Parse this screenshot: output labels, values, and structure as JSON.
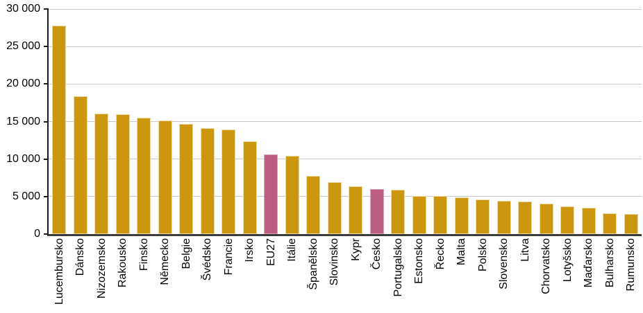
{
  "chart_data": {
    "type": "bar",
    "title": "",
    "xlabel": "",
    "ylabel": "",
    "legend": "none",
    "grid": true,
    "ylim": [
      0,
      30000
    ],
    "categories": [
      "Lucembursko",
      "Dánsko",
      "Nizozemsko",
      "Rakousko",
      "Finsko",
      "Německo",
      "Belgie",
      "Švédsko",
      "Francie",
      "Irsko",
      "EU27",
      "Itálie",
      "Španělsko",
      "Slovinsko",
      "Kypr",
      "Česko",
      "Portugalsko",
      "Estonsko",
      "Řecko",
      "Malta",
      "Polsko",
      "Slovensko",
      "Litva",
      "Chorvatsko",
      "Lotyšsko",
      "Maďarsko",
      "Bulharsko",
      "Rumunsko"
    ],
    "values": [
      27800,
      18400,
      16100,
      16000,
      15500,
      15100,
      14700,
      14100,
      13900,
      12400,
      10600,
      10400,
      7800,
      6900,
      6400,
      6000,
      5900,
      5100,
      5100,
      4900,
      4600,
      4400,
      4300,
      4100,
      3700,
      3500,
      2800,
      2700
    ],
    "yticks": [
      {
        "value": 0,
        "label": "0"
      },
      {
        "value": 5000,
        "label": "5 000"
      },
      {
        "value": 10000,
        "label": "10 000"
      },
      {
        "value": 15000,
        "label": "15 000"
      },
      {
        "value": 20000,
        "label": "20 000"
      },
      {
        "value": 25000,
        "label": "25 000"
      },
      {
        "value": 30000,
        "label": "30 000"
      }
    ],
    "bar_style": {
      "fill": "#CC960E",
      "border": "#EDDCA6"
    },
    "highlight": {
      "indices": [
        10,
        15
      ],
      "fill": "#BC5E82",
      "border": "#D9A2B8"
    },
    "grid_color": "#C9C9C9",
    "y_axis_color": "#1A1A1A",
    "x_axis_color": "#3A3A3A",
    "tick_color": "#1A1A1A"
  }
}
